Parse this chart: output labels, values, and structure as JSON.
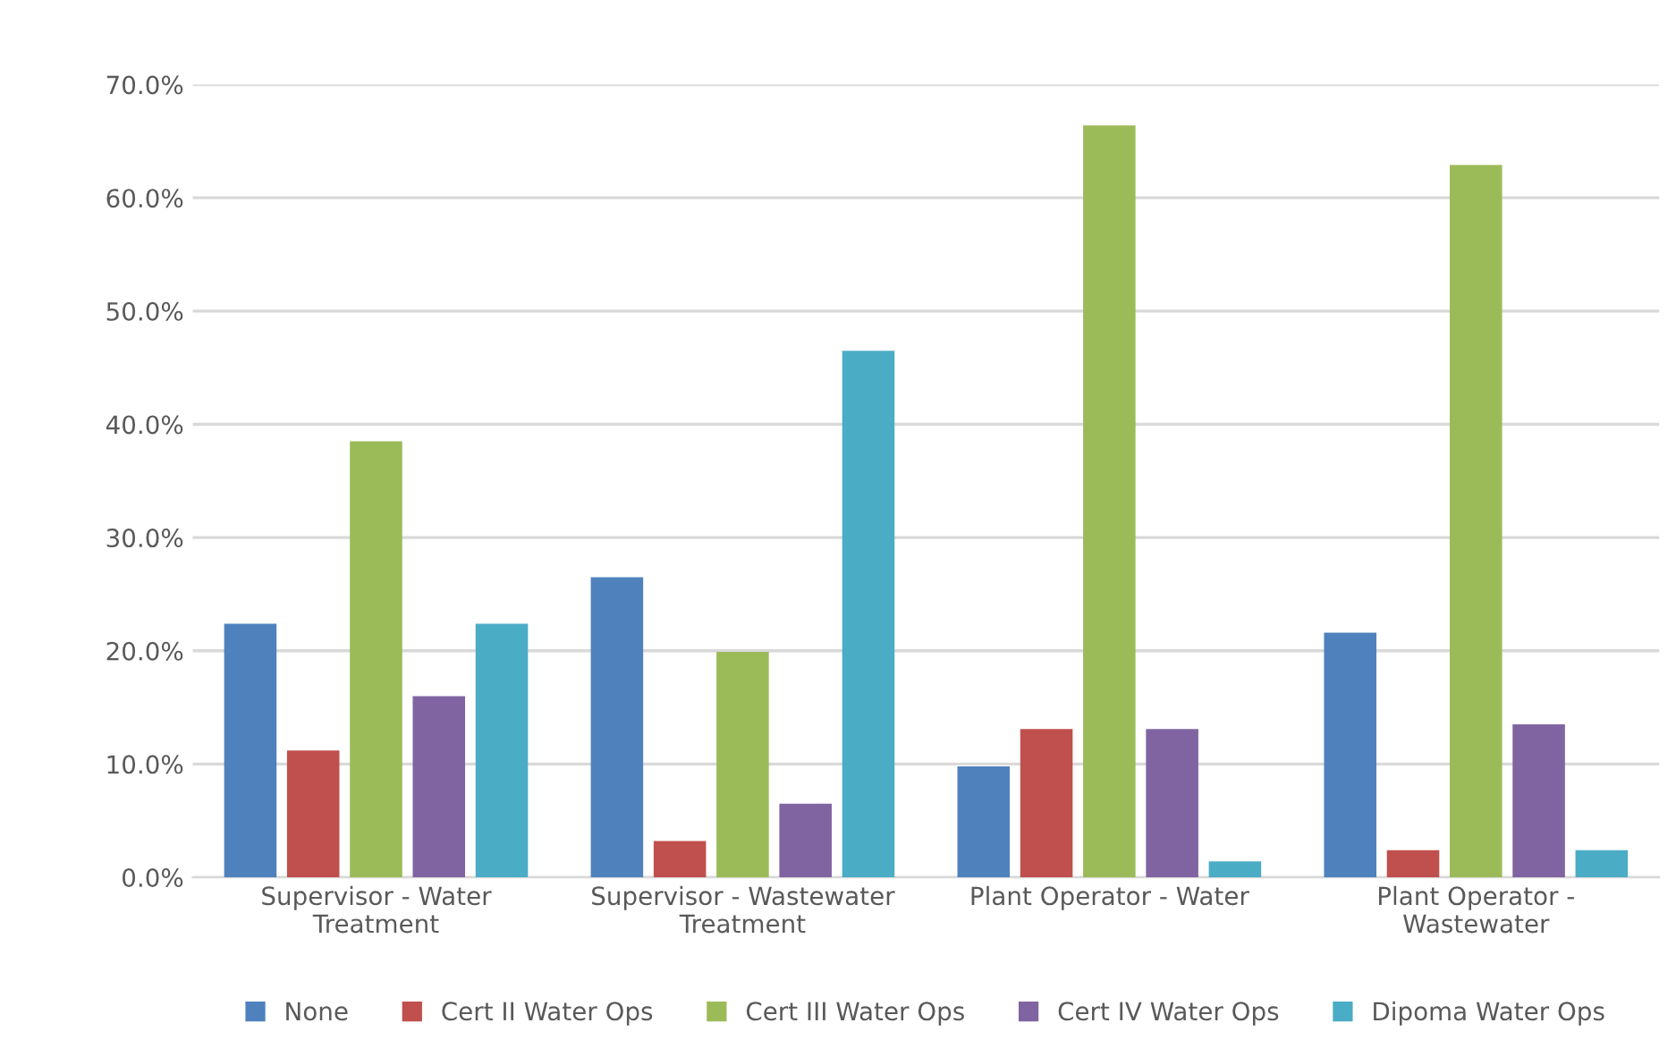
{
  "chart_data": {
    "type": "bar",
    "categories": [
      "Supervisor - Water\nTreatment",
      "Supervisor - Wastewater\nTreatment",
      "Plant Operator - Water",
      "Plant Operator -\nWastewater"
    ],
    "series": [
      {
        "name": "None",
        "color": "#4f81bd",
        "values": [
          22.4,
          26.5,
          9.8,
          21.6
        ]
      },
      {
        "name": "Cert II Water Ops",
        "color": "#c0504d",
        "values": [
          11.2,
          3.2,
          13.1,
          2.4
        ]
      },
      {
        "name": "Cert III Water Ops",
        "color": "#9bbb59",
        "values": [
          38.5,
          19.9,
          66.4,
          62.9
        ]
      },
      {
        "name": "Cert IV Water Ops",
        "color": "#8064a2",
        "values": [
          16.0,
          6.5,
          13.1,
          13.5
        ]
      },
      {
        "name": "Dipoma Water Ops",
        "color": "#4bacc6",
        "values": [
          22.4,
          46.5,
          1.4,
          2.4
        ]
      }
    ],
    "ylim": [
      0,
      70
    ],
    "yticks": [
      {
        "value": 0,
        "label": "0.0%"
      },
      {
        "value": 10,
        "label": "10.0%"
      },
      {
        "value": 20,
        "label": "20.0%"
      },
      {
        "value": 30,
        "label": "30.0%"
      },
      {
        "value": 40,
        "label": "40.0%"
      },
      {
        "value": 50,
        "label": "50.0%"
      },
      {
        "value": 60,
        "label": "60.0%"
      },
      {
        "value": 70,
        "label": "70.0%"
      }
    ],
    "grid": "y",
    "legend": "bottom"
  }
}
